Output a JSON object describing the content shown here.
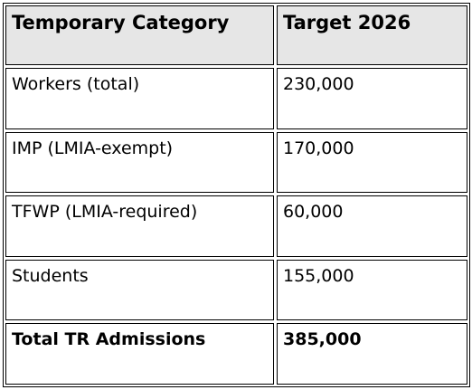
{
  "table": {
    "headers": [
      "Temporary Category",
      "Target 2026"
    ],
    "rows": [
      {
        "category": "Workers (total)",
        "target": "230,000"
      },
      {
        "category": "IMP (LMIA-exempt)",
        "target": "170,000"
      },
      {
        "category": "TFWP (LMIA-required)",
        "target": "60,000"
      },
      {
        "category": "Students",
        "target": "155,000"
      },
      {
        "category": "Total TR Admissions",
        "target": "385,000"
      }
    ]
  }
}
